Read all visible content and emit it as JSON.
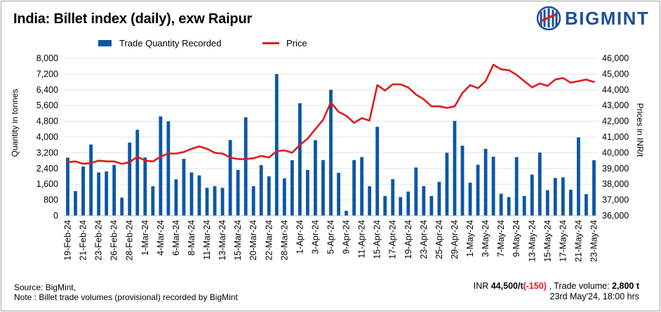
{
  "header": {
    "title": "India: Billet index (daily), exw Raipur",
    "brand": "BIGMINT"
  },
  "legend": {
    "bar_label": "Trade Quantity Recorded",
    "line_label": "Price"
  },
  "colors": {
    "bar": "#0a57a6",
    "line": "#e01c1c",
    "brand": "#1f4e9c",
    "negative": "#e01c1c"
  },
  "chart_data": {
    "type": "bar",
    "combo": "bar + line (dual axis)",
    "title": "India: Billet index (daily), exw Raipur",
    "ylabel": "Quantity in tonnes",
    "y2label": "Prices in INR/t",
    "ylim": [
      0,
      8000
    ],
    "y2lim": [
      36000,
      46000
    ],
    "yticks": [
      "0",
      "800",
      "1,600",
      "2,400",
      "3,200",
      "4,000",
      "4,800",
      "5,600",
      "6,400",
      "7,200",
      "8,000"
    ],
    "y2ticks": [
      "36,000",
      "37,000",
      "38,000",
      "39,000",
      "40,000",
      "41,000",
      "42,000",
      "43,000",
      "44,000",
      "45,000",
      "46,000"
    ],
    "xticks": [
      {
        "index": 0,
        "label": "19-Feb-24"
      },
      {
        "index": 2,
        "label": "21-Feb-24"
      },
      {
        "index": 4,
        "label": "23-Feb-24"
      },
      {
        "index": 6,
        "label": "26-Feb-24"
      },
      {
        "index": 8,
        "label": "28-Feb-24"
      },
      {
        "index": 10,
        "label": "1-Mar-24"
      },
      {
        "index": 12,
        "label": "4-Mar-24"
      },
      {
        "index": 14,
        "label": "6-Mar-24"
      },
      {
        "index": 16,
        "label": "8-Mar-24"
      },
      {
        "index": 18,
        "label": "11-Mar-24"
      },
      {
        "index": 20,
        "label": "13-Mar-24"
      },
      {
        "index": 22,
        "label": "15-Mar-24"
      },
      {
        "index": 24,
        "label": "20-Mar-24"
      },
      {
        "index": 26,
        "label": "22-Mar-24"
      },
      {
        "index": 28,
        "label": "28-Mar-24"
      },
      {
        "index": 30,
        "label": "1-Apr-24"
      },
      {
        "index": 32,
        "label": "3-Apr-24"
      },
      {
        "index": 34,
        "label": "5-Apr-24"
      },
      {
        "index": 36,
        "label": "9-Apr-24"
      },
      {
        "index": 38,
        "label": "11-Apr-24"
      },
      {
        "index": 40,
        "label": "15-Apr-24"
      },
      {
        "index": 42,
        "label": "17-Apr-24"
      },
      {
        "index": 44,
        "label": "19-Apr-24"
      },
      {
        "index": 46,
        "label": "23-Apr-24"
      },
      {
        "index": 48,
        "label": "25-Apr-24"
      },
      {
        "index": 50,
        "label": "29-Apr-24"
      },
      {
        "index": 52,
        "label": "1-May-24"
      },
      {
        "index": 54,
        "label": "3-May-24"
      },
      {
        "index": 56,
        "label": "7-May-24"
      },
      {
        "index": 58,
        "label": "9-May-24"
      },
      {
        "index": 60,
        "label": "13-May-24"
      },
      {
        "index": 62,
        "label": "15-May-24"
      },
      {
        "index": 64,
        "label": "17-May-24"
      },
      {
        "index": 66,
        "label": "21-May-24"
      },
      {
        "index": 68,
        "label": "23-May-24"
      }
    ],
    "series": [
      {
        "name": "Trade Quantity Recorded",
        "type": "bar",
        "axis": "left",
        "values": [
          2950,
          1250,
          2500,
          3620,
          2200,
          2250,
          2580,
          920,
          3720,
          4370,
          2960,
          1500,
          5050,
          4800,
          1850,
          2890,
          2200,
          2050,
          1420,
          1500,
          1420,
          3850,
          2330,
          5000,
          1500,
          2570,
          2000,
          7200,
          1900,
          2820,
          5720,
          2330,
          3840,
          2830,
          6400,
          2180,
          250,
          2830,
          2980,
          1500,
          4520,
          1000,
          1860,
          950,
          1230,
          2450,
          1500,
          1000,
          1720,
          3200,
          4820,
          3560,
          1680,
          2590,
          3400,
          3000,
          1120,
          950,
          2980,
          1000,
          2090,
          3210,
          1300,
          1920,
          1950,
          1320,
          3980,
          1100,
          2820
        ]
      },
      {
        "name": "Price",
        "type": "line",
        "axis": "right",
        "values": [
          39400,
          39450,
          39300,
          39350,
          39500,
          39450,
          39450,
          39300,
          39400,
          39750,
          39500,
          39450,
          39750,
          39950,
          39950,
          40050,
          40250,
          40400,
          40250,
          40000,
          39950,
          39700,
          39600,
          39600,
          39650,
          39800,
          39700,
          40100,
          40150,
          40000,
          40500,
          40900,
          41500,
          42100,
          43200,
          42600,
          42350,
          41900,
          42200,
          42050,
          44300,
          43950,
          44350,
          44350,
          44150,
          43700,
          43400,
          42950,
          42950,
          42850,
          42950,
          43800,
          44300,
          44100,
          44550,
          45600,
          45300,
          45250,
          44950,
          44550,
          44150,
          44400,
          44250,
          44650,
          44750,
          44450,
          44550,
          44650,
          44500
        ]
      }
    ]
  },
  "footer": {
    "source": "Source: BigMint,",
    "note": "Note : Billet trade volumes (provisional) recorded by BigMint",
    "price_prefix": "INR",
    "price_value": "44,500/t",
    "price_change": "(-150)",
    "volume_prefix": ", Trade volume:",
    "volume_value": "2,800 t",
    "timestamp": "23rd May'24, 18:00 hrs"
  }
}
